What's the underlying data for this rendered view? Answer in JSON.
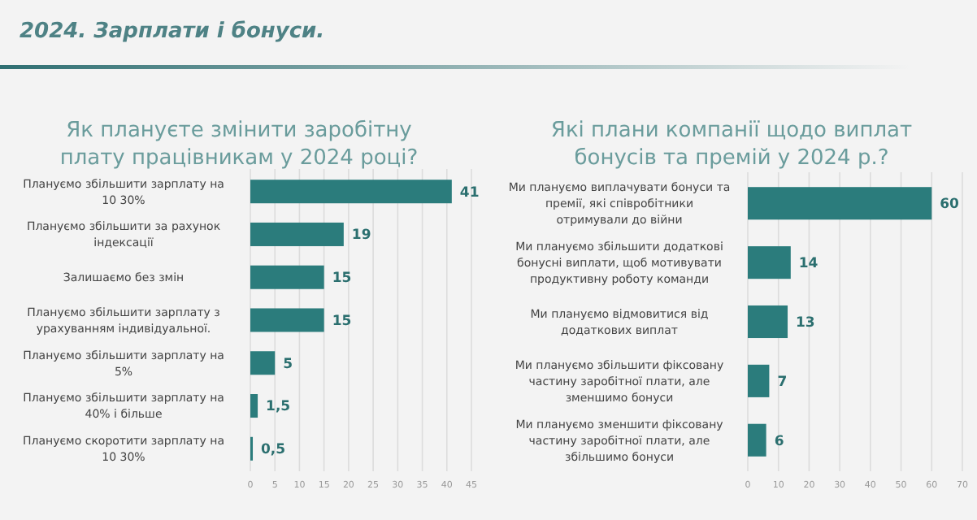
{
  "chart_data": [
    {
      "type": "bar",
      "orientation": "horizontal",
      "title": "Як плануєте змінити заробітну плату працівникам у 2024 році?",
      "annotations": [
        "2024. Зарплати і бонуси."
      ],
      "categories": [
        "Плануємо збільшити зарплату на 10 30%",
        "Плануємо збільшити за рахунок індексації",
        "Залишаємо без змін",
        "Плануємо збільшити зарплату з урахуванням індивідуальної.",
        "Плануємо збільшити зарплату на 5%",
        "Плануємо збільшити зарплату на 40% і більше",
        "Плануємо скоротити зарплату на 10 30%"
      ],
      "values": [
        41,
        19,
        15,
        15,
        5,
        1.5,
        0.5
      ],
      "value_labels": [
        "41",
        "19",
        "15",
        "15",
        "5",
        "1,5",
        "0,5"
      ],
      "color": "#2b7c7c",
      "xlim": [
        0,
        45
      ],
      "xticks": [
        0,
        5,
        10,
        15,
        20,
        25,
        30,
        35,
        40,
        45
      ],
      "grid": "x"
    },
    {
      "type": "bar",
      "orientation": "horizontal",
      "title": "Які плани компанії щодо виплат бонусів та премій у 2024 р.?",
      "categories": [
        "Ми плануємо виплачувати бонуси та премії, які співробітники отримували до війни",
        "Ми плануємо збільшити додаткові бонусні виплати, щоб мотивувати продуктивну роботу команди",
        "Ми плануємо відмовитися від додаткових виплат",
        "Ми плануємо збільшити фіксовану частину заробітної плати, але зменшимо бонуси",
        "Ми плануємо зменшити фіксовану частину заробітної плати, але збільшимо бонуси"
      ],
      "values": [
        60,
        14,
        13,
        7,
        6
      ],
      "data_labels": true,
      "color": "#2b7c7c",
      "xlim": [
        0,
        70
      ],
      "xticks": [
        0,
        10,
        20,
        30,
        40,
        50,
        60,
        70
      ],
      "grid": "x"
    }
  ]
}
